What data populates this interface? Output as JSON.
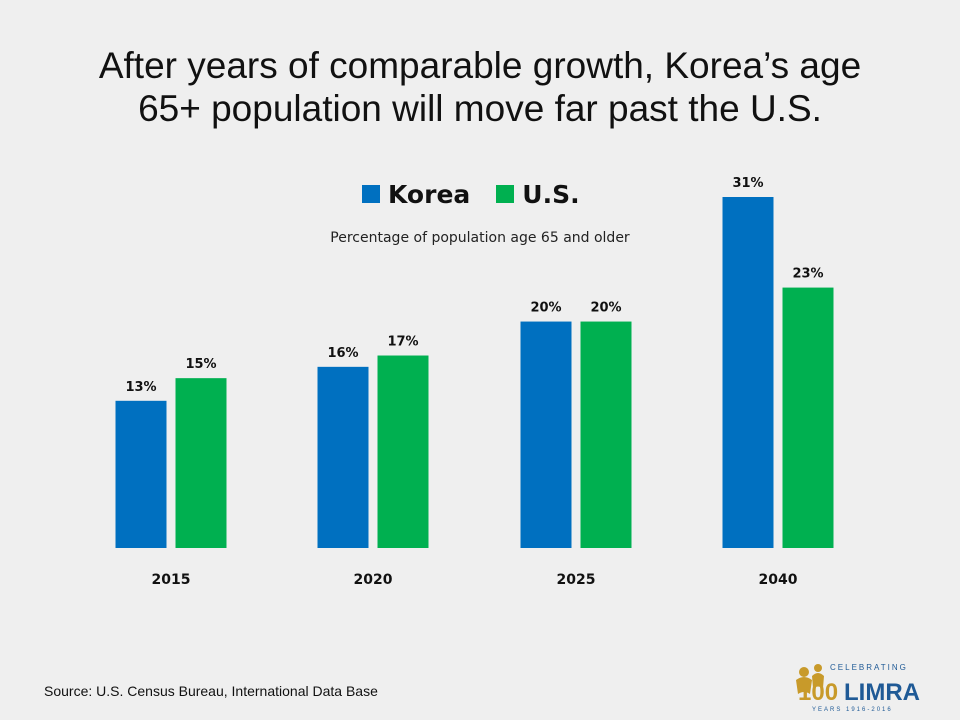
{
  "title_lines": [
    "After years of comparable growth, Korea’s age",
    "65+ population will move far past the U.S."
  ],
  "chart_data": {
    "type": "bar",
    "title": "After years of comparable growth, Korea’s age 65+ population will move far past the U.S.",
    "subtitle": "Percentage of population age 65 and older",
    "categories": [
      "2015",
      "2020",
      "2025",
      "2040"
    ],
    "series": [
      {
        "name": "Korea",
        "values": [
          13,
          16,
          20,
          31
        ],
        "labels": [
          "13%",
          "16%",
          "20%",
          "31%"
        ],
        "color": "#0070c0"
      },
      {
        "name": "U.S.",
        "values": [
          15,
          17,
          20,
          23
        ],
        "labels": [
          "15%",
          "17%",
          "20%",
          "23%"
        ],
        "color": "#00b050"
      }
    ],
    "ylim": [
      0,
      31
    ],
    "grid": false,
    "legend": "top-center"
  },
  "source": "Source: U.S. Census Bureau, International  Data Base",
  "logo": {
    "top_text": "CELEBRATING",
    "main_text": "100 LIMRA",
    "bottom_text": "YEARS 1916-2016",
    "colors": {
      "gold": "#c89a2a",
      "blue": "#1f5a96"
    }
  }
}
